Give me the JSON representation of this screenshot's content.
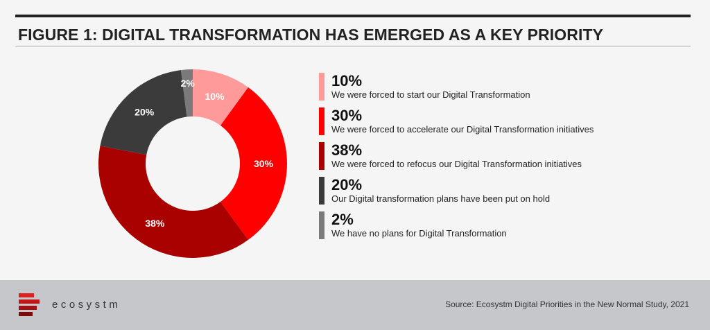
{
  "header": {
    "title": "FIGURE 1: DIGITAL TRANSFORMATION HAS EMERGED AS A KEY PRIORITY"
  },
  "chart_data": {
    "type": "pie",
    "donut": true,
    "legend": "right",
    "categories": [
      "We were forced to start our Digital Transformation",
      "We were forced to accelerate our Digital Transformation initiatives",
      "We were forced to refocus our Digital Transformation initiatives",
      "Our Digital transformation plans have been put on hold",
      "We have no plans for Digital Transformation"
    ],
    "values": [
      10,
      30,
      38,
      20,
      2
    ],
    "labels": [
      "10%",
      "30%",
      "38%",
      "20%",
      "2%"
    ],
    "colors": [
      "#ff9a9a",
      "#fe0000",
      "#a90000",
      "#3b3b3b",
      "#7a7a7a"
    ]
  },
  "legend": {
    "items": [
      {
        "value": "10%",
        "text": "We were forced to start our Digital Transformation",
        "color": "#ff9a9a"
      },
      {
        "value": "30%",
        "text": "We were forced to accelerate our Digital Transformation initiatives",
        "color": "#fe0000"
      },
      {
        "value": "38%",
        "text": "We were forced to refocus our Digital Transformation initiatives",
        "color": "#a90000"
      },
      {
        "value": "20%",
        "text": "Our Digital transformation plans have been put on hold",
        "color": "#3b3b3b"
      },
      {
        "value": "2%",
        "text": "We have no plans for Digital Transformation",
        "color": "#7a7a7a"
      }
    ]
  },
  "footer": {
    "brand": "ecosystm",
    "source": "Source: Ecosystm Digital Priorities in the New Normal Study, 2021"
  }
}
